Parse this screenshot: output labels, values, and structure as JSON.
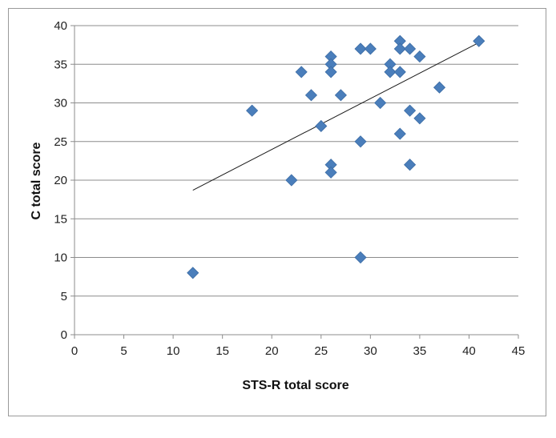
{
  "chart_data": {
    "type": "scatter",
    "title": "",
    "xlabel": "STS-R total score",
    "ylabel": "C total score",
    "xlim": [
      0,
      45
    ],
    "ylim": [
      0,
      40
    ],
    "x_ticks": [
      0,
      5,
      10,
      15,
      20,
      25,
      30,
      35,
      40,
      45
    ],
    "y_ticks": [
      0,
      5,
      10,
      15,
      20,
      25,
      30,
      35,
      40
    ],
    "grid": "horizontal",
    "legend": "none",
    "marker_color": "#4a7ebb",
    "points": [
      {
        "x": 12,
        "y": 8
      },
      {
        "x": 18,
        "y": 29
      },
      {
        "x": 22,
        "y": 20
      },
      {
        "x": 23,
        "y": 34
      },
      {
        "x": 24,
        "y": 31
      },
      {
        "x": 25,
        "y": 27
      },
      {
        "x": 26,
        "y": 36
      },
      {
        "x": 26,
        "y": 35
      },
      {
        "x": 26,
        "y": 34
      },
      {
        "x": 26,
        "y": 22
      },
      {
        "x": 26,
        "y": 21
      },
      {
        "x": 27,
        "y": 31
      },
      {
        "x": 29,
        "y": 37
      },
      {
        "x": 29,
        "y": 25
      },
      {
        "x": 29,
        "y": 10
      },
      {
        "x": 30,
        "y": 37
      },
      {
        "x": 31,
        "y": 30
      },
      {
        "x": 32,
        "y": 35
      },
      {
        "x": 32,
        "y": 34
      },
      {
        "x": 33,
        "y": 38
      },
      {
        "x": 33,
        "y": 37
      },
      {
        "x": 33,
        "y": 34
      },
      {
        "x": 33,
        "y": 26
      },
      {
        "x": 34,
        "y": 37
      },
      {
        "x": 34,
        "y": 29
      },
      {
        "x": 34,
        "y": 22
      },
      {
        "x": 35,
        "y": 36
      },
      {
        "x": 35,
        "y": 28
      },
      {
        "x": 37,
        "y": 32
      },
      {
        "x": 41,
        "y": 38
      }
    ],
    "trendline": {
      "x": [
        12,
        41
      ],
      "y": [
        18.7,
        37.8
      ]
    }
  }
}
